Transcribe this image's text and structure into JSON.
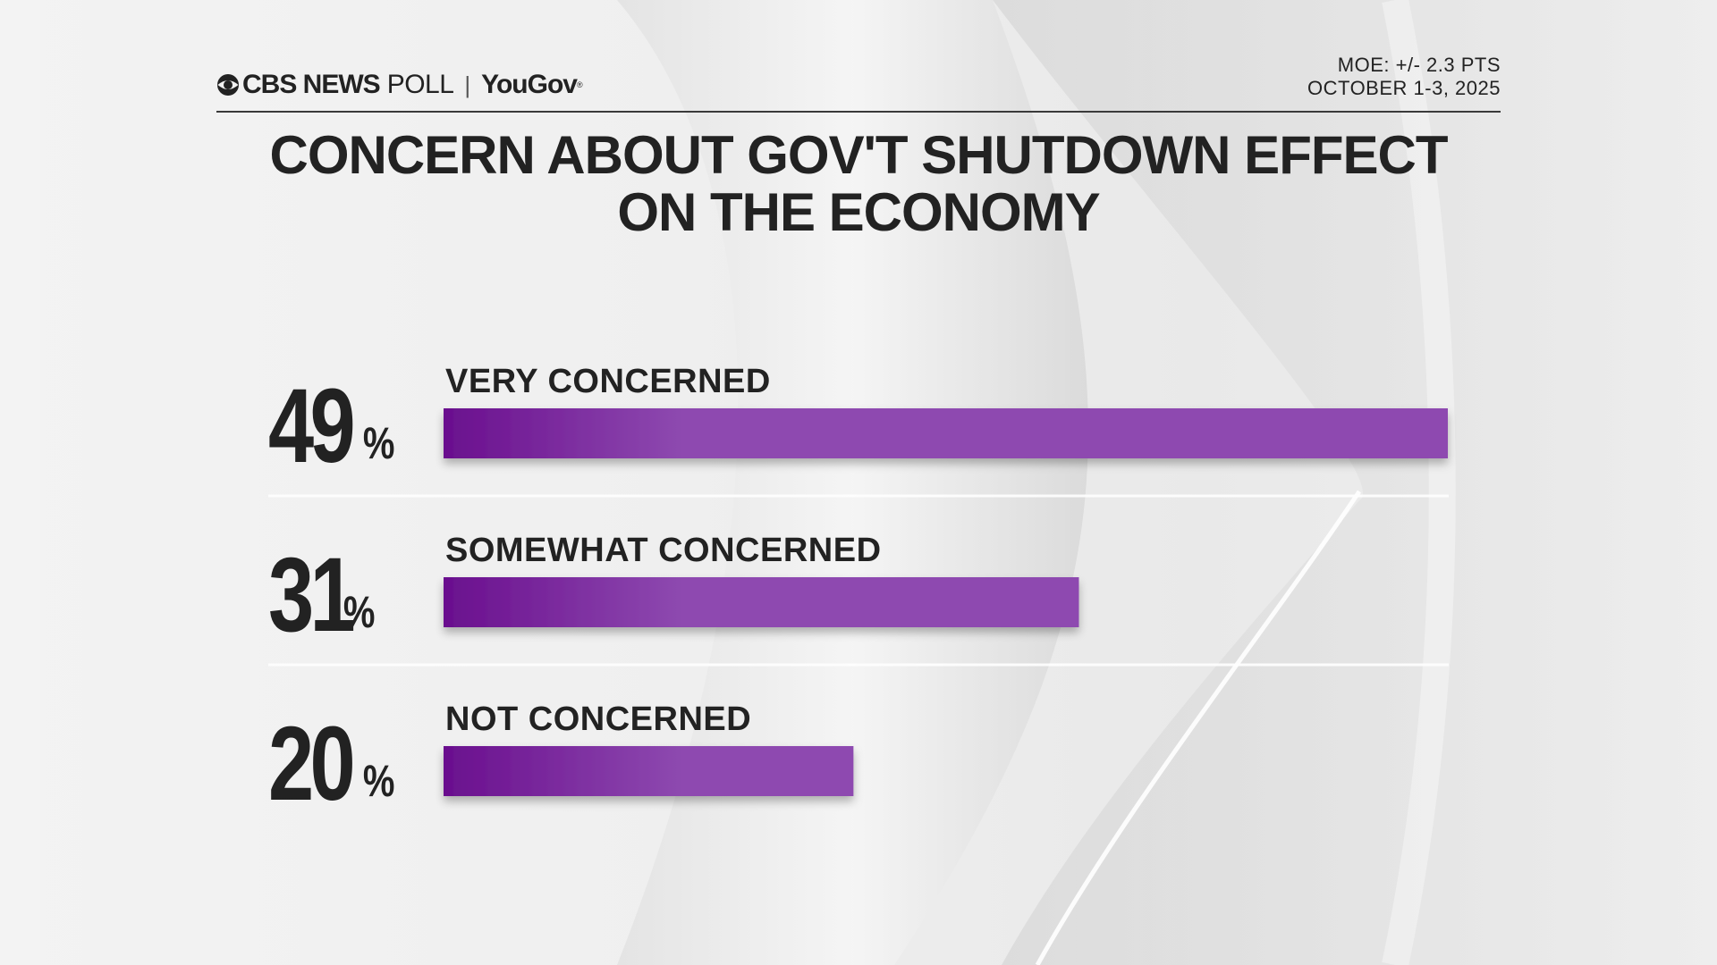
{
  "header": {
    "brand_cbs": "CBS NEWS",
    "brand_poll": "POLL",
    "brand_separator": "|",
    "brand_yougov": "YouGov",
    "moe": "MOE: +/- 2.3 PTS",
    "dates": "OCTOBER 1-3, 2025"
  },
  "title_line1": "CONCERN ABOUT GOV'T SHUTDOWN EFFECT",
  "title_line2": "ON THE ECONOMY",
  "colors": {
    "bar_dark": "#6a0f8e",
    "bar_light": "#8e4ab0",
    "text": "#222222"
  },
  "chart_data": {
    "type": "bar",
    "orientation": "horizontal",
    "title": "CONCERN ABOUT GOV'T SHUTDOWN EFFECT ON THE ECONOMY",
    "categories": [
      "VERY CONCERNED",
      "SOMEWHAT CONCERNED",
      "NOT CONCERNED"
    ],
    "values": [
      49,
      31,
      20
    ],
    "value_labels": [
      "49",
      "31",
      "20"
    ],
    "unit": "%",
    "xlim": [
      0,
      49
    ],
    "xlabel": "",
    "ylabel": "",
    "grid": false,
    "legend": "none"
  }
}
